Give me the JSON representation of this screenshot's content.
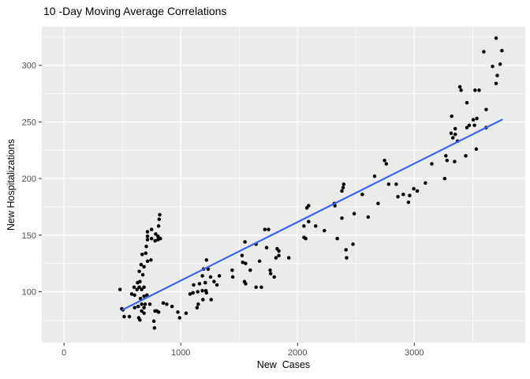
{
  "window": {
    "background": "#ffffff"
  },
  "chart_data": {
    "type": "scatter",
    "title": "10 -Day Moving Average Correlations",
    "xlabel": "New  Cases",
    "ylabel": "New Hospitalizations",
    "xlim": [
      -190,
      3950
    ],
    "ylim": [
      55,
      334
    ],
    "x_tick_values": [
      0,
      1000,
      2000,
      3000
    ],
    "x_tick_labels": [
      "0",
      "1000",
      "2000",
      "3000"
    ],
    "x_minor_values": [
      500,
      1500,
      2500,
      3500
    ],
    "y_tick_values": [
      100,
      150,
      200,
      250,
      300
    ],
    "y_tick_labels": [
      "100",
      "150",
      "200",
      "250",
      "300"
    ],
    "y_minor_values": [
      75,
      125,
      175,
      225,
      275,
      325
    ],
    "grid": true,
    "legend_position": "none",
    "colors": {
      "panel_background": "#EBEBEB",
      "gridline": "#FFFFFF",
      "point": "#000000",
      "trend_line": "#3366FF",
      "tick_label": "#4D4D4D",
      "tick_mark": "#333333",
      "text": "#000000"
    },
    "point_radius": 2.25,
    "trend_line": {
      "x1": 500,
      "y1": 84,
      "x2": 3750,
      "y2": 252,
      "width": 2.2
    },
    "points": [
      [
        480,
        102
      ],
      [
        495,
        85
      ],
      [
        505,
        84
      ],
      [
        515,
        78
      ],
      [
        560,
        78
      ],
      [
        580,
        98
      ],
      [
        605,
        97
      ],
      [
        605,
        86
      ],
      [
        625,
        102
      ],
      [
        600,
        104
      ],
      [
        630,
        108
      ],
      [
        635,
        87
      ],
      [
        640,
        77
      ],
      [
        645,
        104
      ],
      [
        645,
        118
      ],
      [
        650,
        75
      ],
      [
        650,
        109
      ],
      [
        655,
        94
      ],
      [
        660,
        124
      ],
      [
        665,
        102
      ],
      [
        665,
        89
      ],
      [
        665,
        83
      ],
      [
        670,
        133
      ],
      [
        675,
        115
      ],
      [
        685,
        122
      ],
      [
        685,
        104
      ],
      [
        685,
        96
      ],
      [
        685,
        86
      ],
      [
        685,
        81
      ],
      [
        695,
        89
      ],
      [
        700,
        134
      ],
      [
        705,
        140
      ],
      [
        710,
        97
      ],
      [
        715,
        153
      ],
      [
        715,
        149
      ],
      [
        715,
        146
      ],
      [
        715,
        127
      ],
      [
        735,
        89
      ],
      [
        745,
        128
      ],
      [
        750,
        155
      ],
      [
        750,
        147
      ],
      [
        770,
        74
      ],
      [
        775,
        68
      ],
      [
        780,
        145
      ],
      [
        780,
        83
      ],
      [
        785,
        151
      ],
      [
        795,
        83
      ],
      [
        805,
        149
      ],
      [
        805,
        146
      ],
      [
        810,
        82
      ],
      [
        810,
        158
      ],
      [
        815,
        164
      ],
      [
        820,
        168
      ],
      [
        825,
        147
      ],
      [
        850,
        90
      ],
      [
        880,
        89
      ],
      [
        925,
        87
      ],
      [
        975,
        82
      ],
      [
        990,
        77
      ],
      [
        1045,
        81
      ],
      [
        1080,
        98
      ],
      [
        1105,
        99
      ],
      [
        1110,
        106
      ],
      [
        1140,
        86
      ],
      [
        1145,
        100
      ],
      [
        1150,
        89
      ],
      [
        1160,
        107
      ],
      [
        1185,
        101
      ],
      [
        1185,
        114
      ],
      [
        1190,
        93
      ],
      [
        1195,
        120
      ],
      [
        1210,
        108
      ],
      [
        1215,
        101
      ],
      [
        1220,
        99
      ],
      [
        1220,
        128
      ],
      [
        1235,
        120
      ],
      [
        1255,
        113
      ],
      [
        1260,
        93
      ],
      [
        1285,
        109
      ],
      [
        1310,
        106
      ],
      [
        1330,
        114
      ],
      [
        1440,
        119
      ],
      [
        1445,
        113
      ],
      [
        1525,
        132
      ],
      [
        1530,
        126
      ],
      [
        1545,
        109
      ],
      [
        1550,
        144
      ],
      [
        1555,
        125
      ],
      [
        1555,
        107
      ],
      [
        1595,
        119
      ],
      [
        1645,
        142
      ],
      [
        1645,
        104
      ],
      [
        1675,
        127
      ],
      [
        1690,
        104
      ],
      [
        1720,
        155
      ],
      [
        1735,
        139
      ],
      [
        1752,
        155
      ],
      [
        1765,
        119
      ],
      [
        1770,
        116
      ],
      [
        1800,
        113
      ],
      [
        1815,
        130
      ],
      [
        1825,
        138
      ],
      [
        1840,
        136
      ],
      [
        1840,
        132
      ],
      [
        1925,
        130
      ],
      [
        2055,
        158
      ],
      [
        2055,
        148
      ],
      [
        2070,
        147
      ],
      [
        2080,
        174
      ],
      [
        2095,
        176
      ],
      [
        2095,
        162
      ],
      [
        2155,
        158
      ],
      [
        2230,
        154
      ],
      [
        2315,
        178
      ],
      [
        2320,
        176
      ],
      [
        2340,
        147
      ],
      [
        2380,
        189
      ],
      [
        2380,
        165
      ],
      [
        2390,
        192
      ],
      [
        2395,
        195
      ],
      [
        2415,
        137
      ],
      [
        2420,
        130
      ],
      [
        2475,
        142
      ],
      [
        2485,
        169
      ],
      [
        2555,
        186
      ],
      [
        2605,
        166
      ],
      [
        2660,
        202
      ],
      [
        2690,
        178
      ],
      [
        2745,
        216
      ],
      [
        2760,
        213
      ],
      [
        2780,
        195
      ],
      [
        2845,
        195
      ],
      [
        2860,
        184
      ],
      [
        2905,
        186
      ],
      [
        2950,
        179
      ],
      [
        2960,
        185
      ],
      [
        2995,
        191
      ],
      [
        3025,
        189
      ],
      [
        3095,
        196
      ],
      [
        3150,
        213
      ],
      [
        3260,
        200
      ],
      [
        3270,
        220
      ],
      [
        3280,
        216
      ],
      [
        3315,
        240
      ],
      [
        3320,
        255
      ],
      [
        3330,
        236
      ],
      [
        3345,
        215
      ],
      [
        3350,
        239
      ],
      [
        3350,
        244
      ],
      [
        3370,
        233
      ],
      [
        3390,
        281
      ],
      [
        3400,
        278
      ],
      [
        3440,
        220
      ],
      [
        3450,
        245
      ],
      [
        3450,
        267
      ],
      [
        3470,
        247
      ],
      [
        3505,
        252
      ],
      [
        3515,
        247
      ],
      [
        3520,
        278
      ],
      [
        3530,
        226
      ],
      [
        3535,
        253
      ],
      [
        3555,
        278
      ],
      [
        3595,
        312
      ],
      [
        3615,
        261
      ],
      [
        3615,
        245
      ],
      [
        3670,
        299
      ],
      [
        3700,
        324
      ],
      [
        3700,
        284
      ],
      [
        3710,
        291
      ],
      [
        3735,
        301
      ],
      [
        3750,
        313
      ]
    ]
  }
}
